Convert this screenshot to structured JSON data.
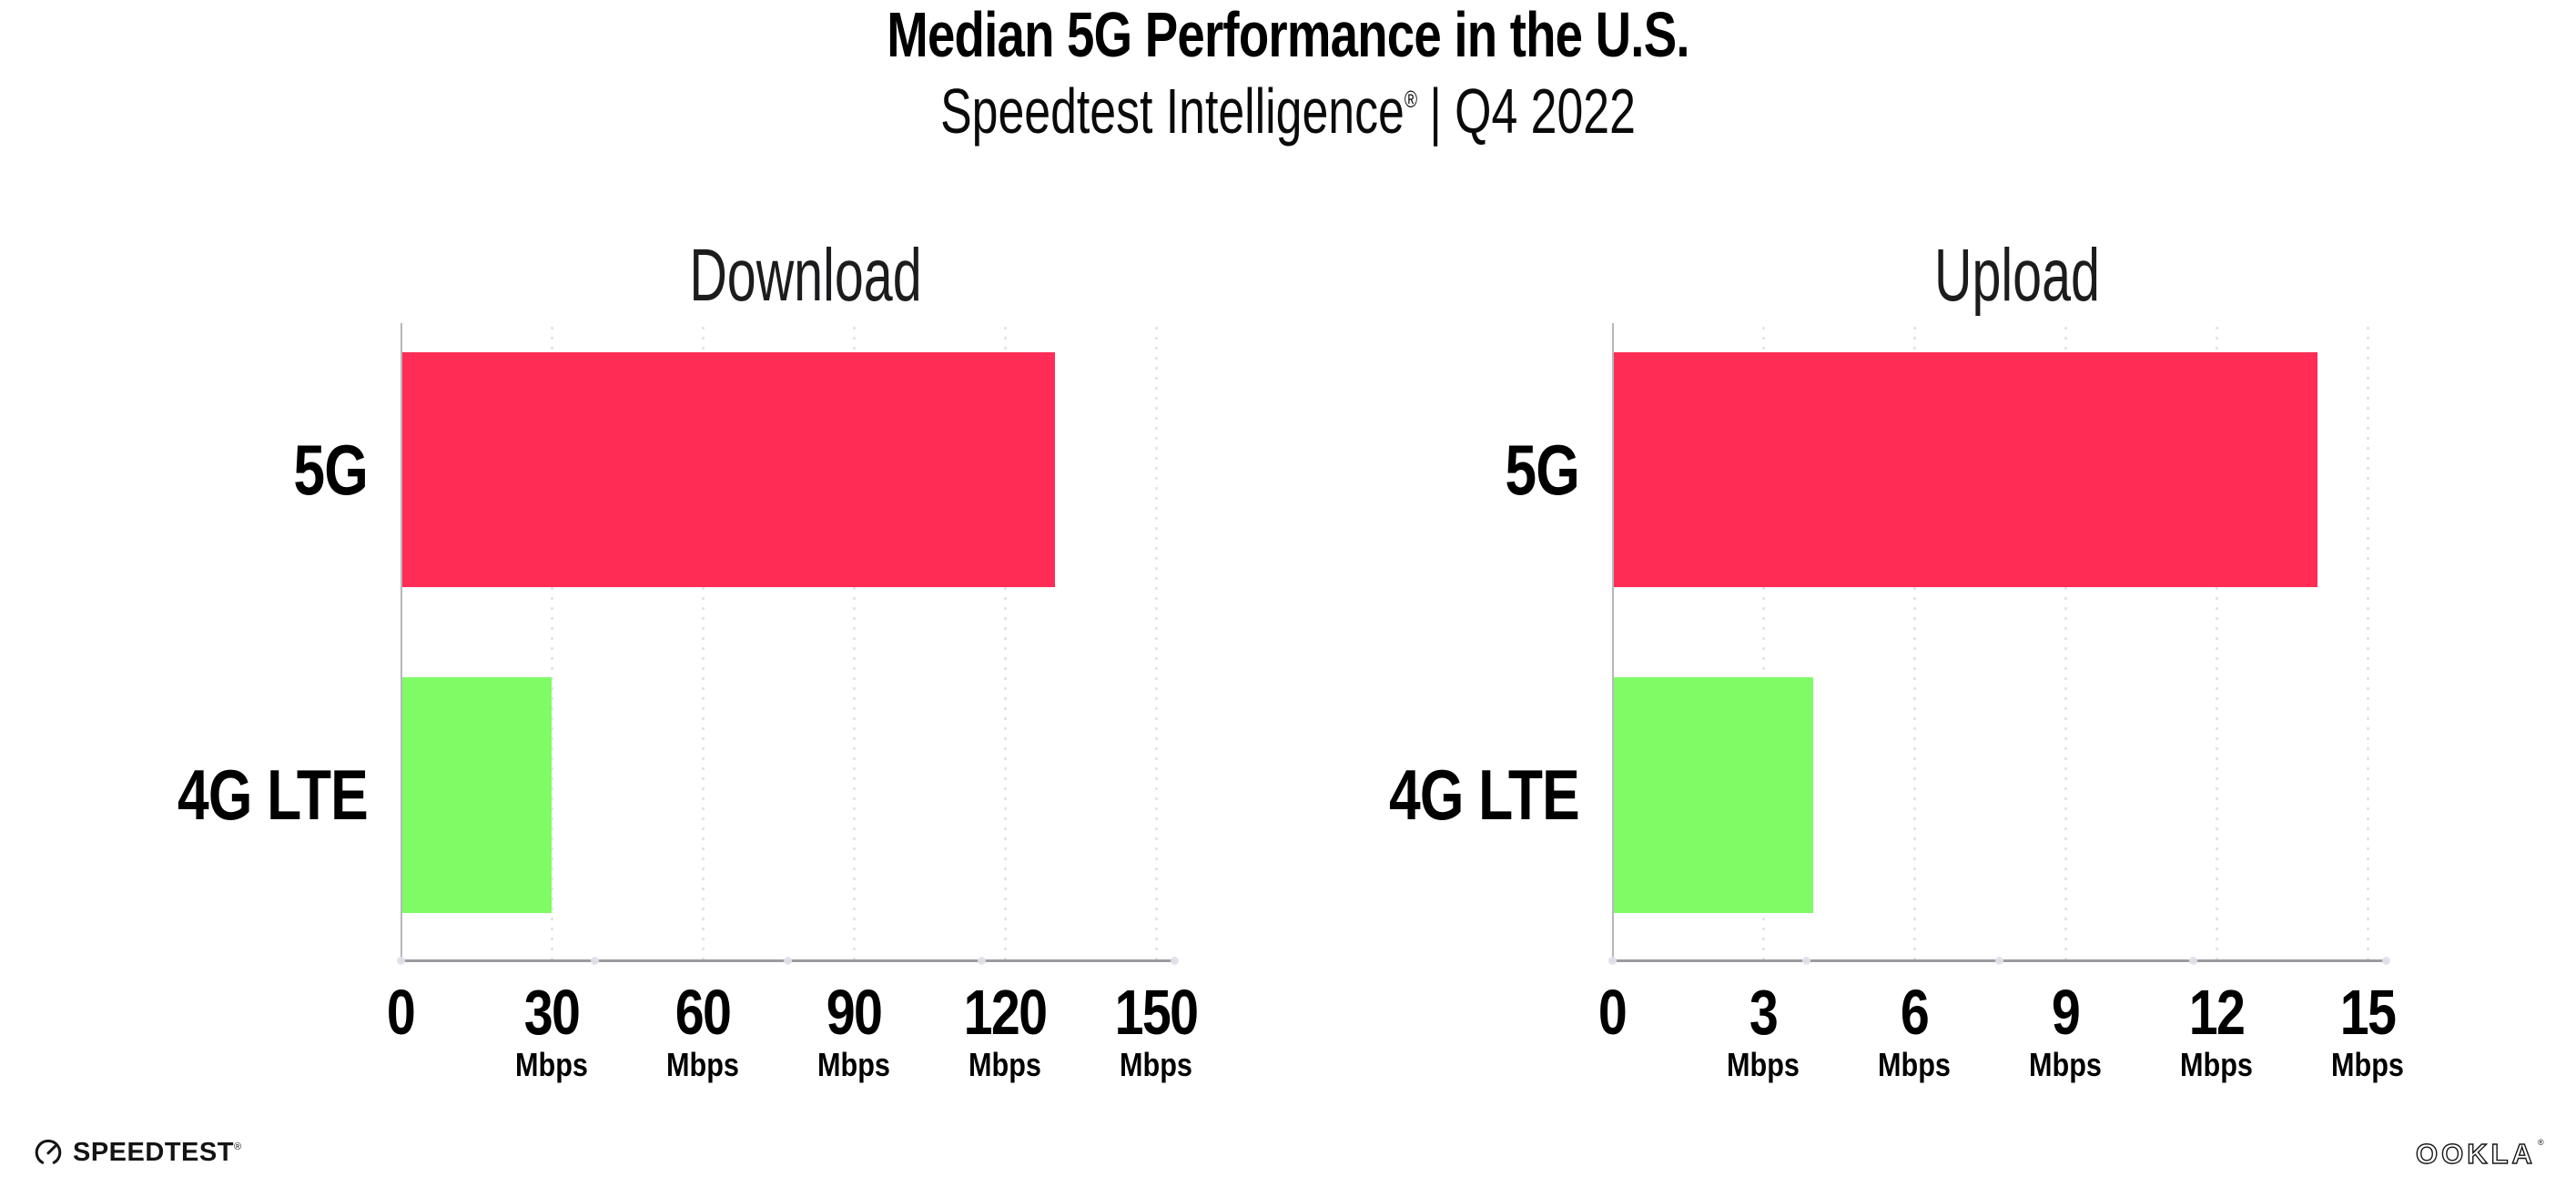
{
  "header": {
    "title": "Median 5G Performance in the U.S.",
    "subtitle_brand": "Speedtest Intelligence",
    "subtitle_reg": "®",
    "subtitle_sep": "| Q4 2022"
  },
  "colors": {
    "bar_5g": "#FF2D55",
    "bar_4g": "#7FFB66",
    "axis_line": "#9B9BA1",
    "grid_dot": "#E2E2EC",
    "text": "#000000"
  },
  "chart_data": [
    {
      "type": "bar",
      "orientation": "horizontal",
      "title": "Download",
      "categories": [
        "5G",
        "4G LTE"
      ],
      "values": [
        130,
        30
      ],
      "unit": "Mbps",
      "xlabel": "",
      "ylabel": "",
      "xlim": [
        0,
        150
      ],
      "xticks": [
        0,
        30,
        60,
        90,
        120,
        150
      ],
      "grid": "vertical-dotted",
      "legend": "none",
      "bar_colors": [
        "#FF2D55",
        "#7FFB66"
      ]
    },
    {
      "type": "bar",
      "orientation": "horizontal",
      "title": "Upload",
      "categories": [
        "5G",
        "4G LTE"
      ],
      "values": [
        14,
        4
      ],
      "unit": "Mbps",
      "xlabel": "",
      "ylabel": "",
      "xlim": [
        0,
        15
      ],
      "xticks": [
        0,
        3,
        6,
        9,
        12,
        15
      ],
      "grid": "vertical-dotted",
      "legend": "none",
      "bar_colors": [
        "#FF2D55",
        "#7FFB66"
      ]
    }
  ],
  "footer": {
    "speedtest_label": "SPEEDTEST",
    "speedtest_reg": "®",
    "ookla_label": "OOKLA",
    "ookla_reg": "®"
  }
}
